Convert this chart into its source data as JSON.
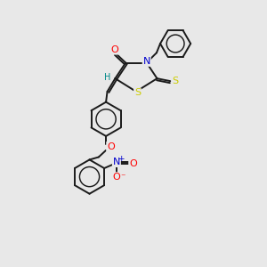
{
  "bg_color": "#e8e8e8",
  "bond_color": "#1a1a1a",
  "atom_colors": {
    "O": "#ff0000",
    "N": "#0000cc",
    "S": "#cccc00",
    "H": "#008888",
    "C": "#1a1a1a"
  },
  "lw": 1.4,
  "fontsize": 7.5
}
